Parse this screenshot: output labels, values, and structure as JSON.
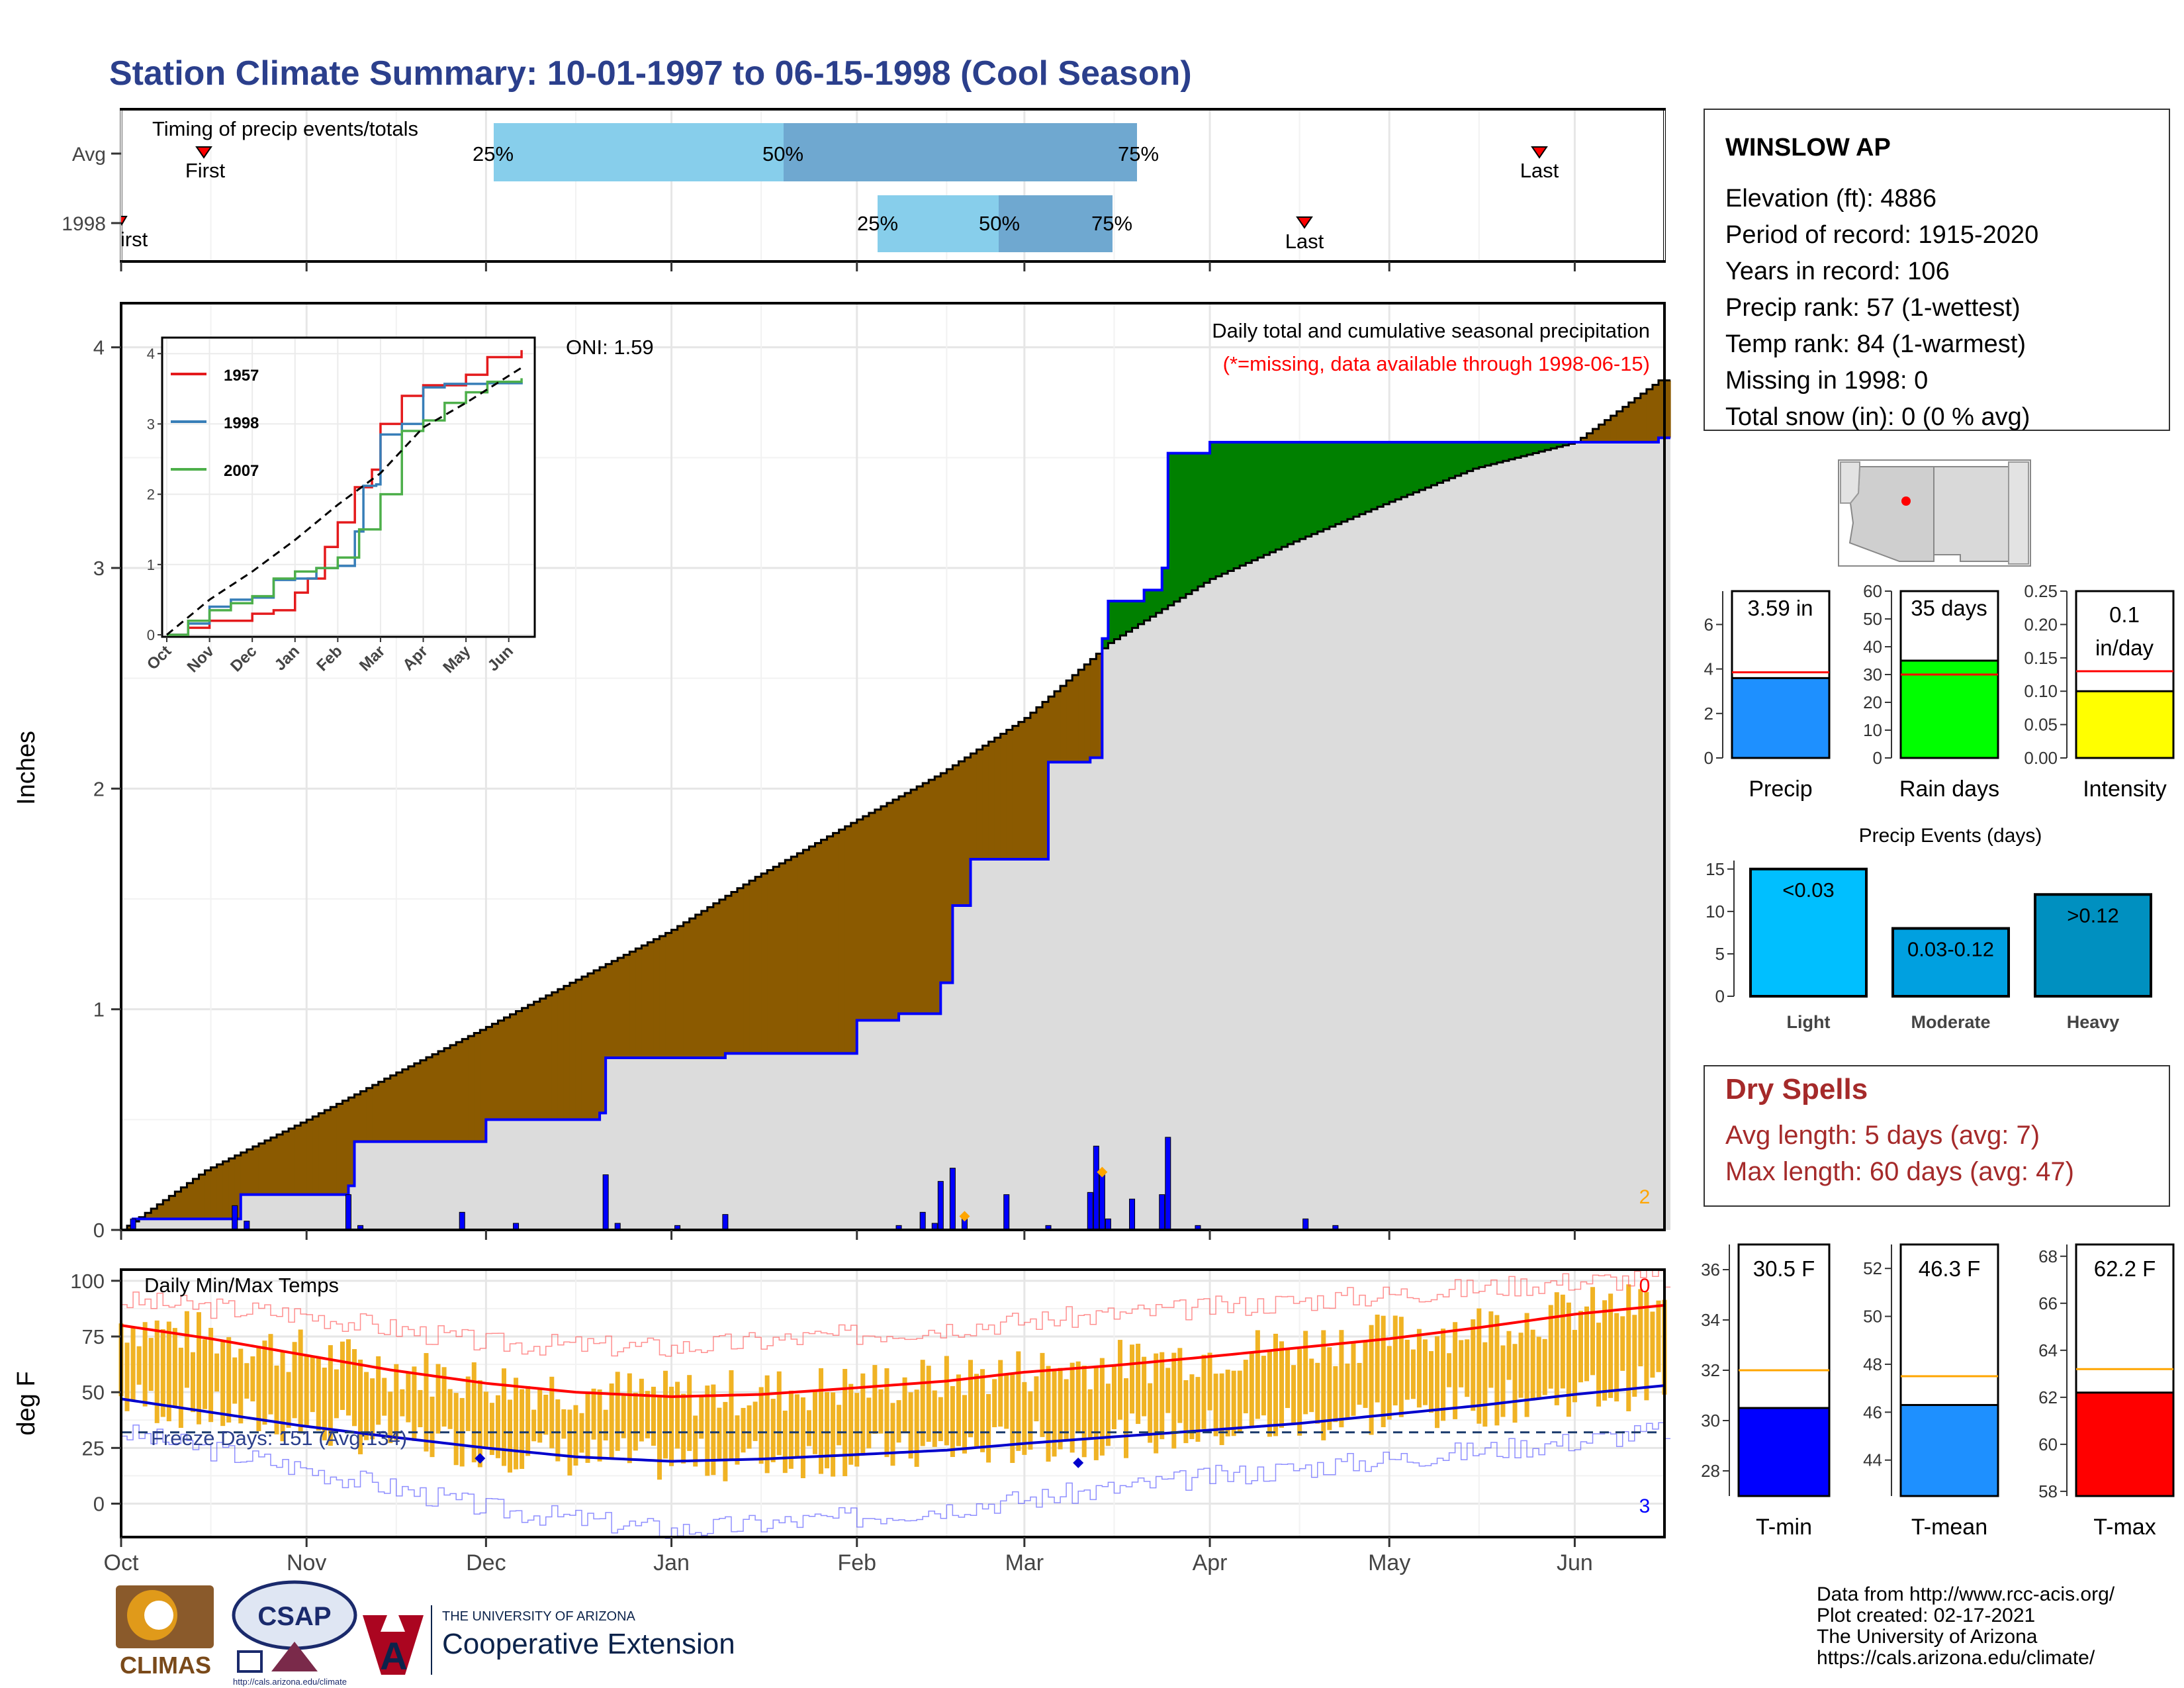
{
  "title": "Station Climate Summary: 10-01-1997 to 06-15-1998 (Cool Season)",
  "timing": {
    "title": "Timing of precip events/totals",
    "rows": [
      {
        "label": "Avg",
        "first_label": "First",
        "last_label": "Last",
        "first": "Oct 29",
        "q25": "Feb 2",
        "q50": "Mar 18",
        "q75": "Apr 22",
        "last": "Jun 6"
      },
      {
        "label": "1998",
        "first_label": "First",
        "last_label": "Last",
        "first": "Oct 1",
        "q25": "Mar 3",
        "q50": "Mar 21",
        "q75": "Apr 8",
        "last": "May 21"
      }
    ],
    "pct_labels": [
      "25%",
      "50%",
      "75%"
    ]
  },
  "precip": {
    "ylabel": "Inches",
    "subtitle": "Daily total and cumulative seasonal precipitation",
    "missing_note": "(*=missing, data available through 1998-06-15)",
    "missing_count": "2",
    "oni": "ONI: 1.59",
    "months": [
      "Oct",
      "Nov",
      "Dec",
      "Jan",
      "Feb",
      "Mar",
      "Apr",
      "May",
      "Jun"
    ],
    "yticks": [
      "0",
      "1",
      "2",
      "3",
      "4"
    ]
  },
  "chart_data": [
    {
      "type": "area",
      "title": "Daily total and cumulative seasonal precipitation",
      "ylabel": "Inches",
      "ylim": [
        0,
        4.2
      ],
      "x_range": [
        "1997-10-01",
        "1998-06-15"
      ],
      "series": [
        {
          "name": "Average cumulative",
          "x": [
            "1997-10-01",
            "1997-10-15",
            "1997-11-01",
            "1997-11-15",
            "1997-12-01",
            "1997-12-15",
            "1998-01-01",
            "1998-01-15",
            "1998-02-01",
            "1998-02-15",
            "1998-03-01",
            "1998-03-15",
            "1998-04-01",
            "1998-04-15",
            "1998-05-01",
            "1998-05-15",
            "1998-06-01",
            "1998-06-15"
          ],
          "values": [
            0.0,
            0.27,
            0.5,
            0.7,
            0.92,
            1.12,
            1.36,
            1.6,
            1.86,
            2.07,
            2.32,
            2.66,
            2.95,
            3.12,
            3.3,
            3.45,
            3.57,
            3.85
          ]
        },
        {
          "name": "1998 cumulative",
          "x": [
            "1997-10-01",
            "1997-10-03",
            "1997-10-20",
            "1997-10-21",
            "1997-11-08",
            "1997-11-09",
            "1997-11-27",
            "1997-12-01",
            "1997-12-20",
            "1997-12-21",
            "1998-01-10",
            "1998-02-01",
            "1998-02-08",
            "1998-02-15",
            "1998-02-17",
            "1998-02-20",
            "1998-03-05",
            "1998-03-12",
            "1998-03-14",
            "1998-03-15",
            "1998-03-21",
            "1998-03-24",
            "1998-03-25",
            "1998-04-01",
            "1998-05-01",
            "1998-06-15"
          ],
          "values": [
            0.0,
            0.05,
            0.05,
            0.16,
            0.2,
            0.4,
            0.4,
            0.5,
            0.53,
            0.78,
            0.8,
            0.95,
            0.98,
            1.12,
            1.47,
            1.68,
            2.12,
            2.14,
            2.68,
            2.85,
            2.9,
            3.0,
            3.52,
            3.57,
            3.57,
            3.59
          ]
        },
        {
          "name": "Daily total",
          "x": [
            "1997-10-03",
            "1997-10-20",
            "1997-10-22",
            "1997-11-08",
            "1997-11-10",
            "1997-11-27",
            "1997-12-06",
            "1997-12-21",
            "1997-12-23",
            "1998-01-02",
            "1998-01-10",
            "1998-02-08",
            "1998-02-12",
            "1998-02-14",
            "1998-02-15",
            "1998-02-17",
            "1998-02-19",
            "1998-02-26",
            "1998-03-05",
            "1998-03-12",
            "1998-03-13",
            "1998-03-14",
            "1998-03-15",
            "1998-03-19",
            "1998-03-24",
            "1998-03-25",
            "1998-03-30",
            "1998-04-17",
            "1998-04-22"
          ],
          "values": [
            0.05,
            0.11,
            0.04,
            0.16,
            0.02,
            0.08,
            0.03,
            0.25,
            0.03,
            0.02,
            0.07,
            0.02,
            0.08,
            0.03,
            0.22,
            0.28,
            0.05,
            0.16,
            0.02,
            0.17,
            0.38,
            0.25,
            0.05,
            0.14,
            0.16,
            0.42,
            0.02,
            0.05,
            0.02
          ]
        }
      ],
      "highlight_markers": [
        "1998-02-19",
        "1998-03-14"
      ]
    },
    {
      "type": "line",
      "title": "",
      "ylim": [
        0,
        4
      ],
      "x_range": [
        "Oct",
        "Jun"
      ],
      "series": [
        {
          "name": "1957",
          "x": [
            0,
            0.5,
            1,
            1.5,
            2,
            2.5,
            3,
            3.3,
            3.7,
            4,
            4.4,
            4.8,
            5,
            5.5,
            6,
            6.5,
            7,
            7.5,
            8.3
          ],
          "values": [
            0,
            0.1,
            0.2,
            0.2,
            0.3,
            0.35,
            0.6,
            0.8,
            1.25,
            1.6,
            2.1,
            2.35,
            3.0,
            3.4,
            3.55,
            3.55,
            3.7,
            3.95,
            4.05
          ]
        },
        {
          "name": "1998",
          "x": [
            0,
            0.5,
            1,
            1.5,
            2,
            2.5,
            3,
            3.5,
            4,
            4.4,
            4.6,
            4.9,
            5,
            5.5,
            6,
            6.5,
            7,
            7.5,
            8.3
          ],
          "values": [
            0,
            0.16,
            0.4,
            0.5,
            0.53,
            0.78,
            0.8,
            0.95,
            0.98,
            1.47,
            2.12,
            2.14,
            2.85,
            3.0,
            3.52,
            3.57,
            3.57,
            3.58,
            3.59
          ]
        },
        {
          "name": "2007",
          "x": [
            0,
            0.5,
            1,
            1.5,
            2,
            2.5,
            3,
            3.5,
            4,
            4.5,
            5,
            5.5,
            6,
            6.5,
            7,
            7.5,
            8.3
          ],
          "values": [
            0,
            0.2,
            0.35,
            0.45,
            0.55,
            0.8,
            0.9,
            0.95,
            1.1,
            1.5,
            2.0,
            2.9,
            3.05,
            3.3,
            3.45,
            3.6,
            3.65
          ]
        },
        {
          "name": "Average",
          "x": [
            0,
            1,
            2,
            3,
            4,
            5,
            6,
            7,
            8.3
          ],
          "values": [
            0,
            0.5,
            0.9,
            1.35,
            1.85,
            2.3,
            2.95,
            3.3,
            3.8
          ]
        }
      ],
      "xticks": [
        "Oct",
        "Nov",
        "Dec",
        "Jan",
        "Feb",
        "Mar",
        "Apr",
        "May",
        "Jun"
      ],
      "yticks": [
        "0",
        "1",
        "2",
        "3",
        "4"
      ]
    },
    {
      "type": "bar",
      "title": "Daily Min/Max Temps",
      "ylabel": "deg F",
      "ylim": [
        -15,
        105
      ],
      "freeze_note": "Freeze Days: 151 (Avg:134)",
      "freeze_line": 32,
      "missing_max": "0",
      "missing_min": "3",
      "series": [
        {
          "name": "Avg max",
          "x": [
            0,
            15,
            30,
            45,
            61,
            76,
            92,
            107,
            123,
            138,
            151,
            166,
            182,
            197,
            212,
            227,
            243,
            258
          ],
          "values": [
            80,
            74,
            67,
            60,
            54,
            50,
            48,
            49,
            52,
            55,
            59,
            62,
            66,
            70,
            74,
            79,
            85,
            89
          ]
        },
        {
          "name": "Avg min",
          "x": [
            0,
            15,
            30,
            45,
            61,
            76,
            92,
            107,
            123,
            138,
            151,
            166,
            182,
            197,
            212,
            227,
            243,
            258
          ],
          "values": [
            47,
            41,
            35,
            30,
            25,
            21,
            19,
            20,
            22,
            24,
            27,
            30,
            33,
            36,
            40,
            44,
            49,
            53
          ]
        },
        {
          "name": "Record max",
          "x": [
            0,
            30,
            61,
            92,
            123,
            151,
            182,
            212,
            243,
            258
          ],
          "values": [
            91,
            85,
            72,
            70,
            76,
            82,
            88,
            94,
            100,
            101
          ]
        },
        {
          "name": "Record min",
          "x": [
            0,
            30,
            61,
            92,
            123,
            151,
            182,
            212,
            243,
            258
          ],
          "values": [
            32,
            16,
            -2,
            -12,
            -6,
            2,
            12,
            20,
            28,
            33
          ]
        }
      ],
      "xticks": [
        "Oct",
        "Nov",
        "Dec",
        "Jan",
        "Feb",
        "Mar",
        "Apr",
        "May",
        "Jun"
      ],
      "yticks": [
        "0",
        "25",
        "50",
        "75",
        "100"
      ]
    },
    {
      "type": "bar",
      "title": "Precip",
      "categories": [
        "Precip",
        "Rain days",
        "Intensity"
      ],
      "values": [
        3.59,
        35,
        0.1
      ],
      "averages": [
        3.85,
        30,
        0.13
      ],
      "labels": [
        "3.59 in",
        "35 days",
        "0.1 in/day"
      ],
      "ylims": [
        [
          0,
          7.5
        ],
        [
          0,
          60
        ],
        [
          0,
          0.25
        ]
      ],
      "yticks": [
        [
          "0",
          "2",
          "4",
          "6"
        ],
        [
          "0",
          "10",
          "20",
          "30",
          "40",
          "50",
          "60"
        ],
        [
          "0.00",
          "0.05",
          "0.10",
          "0.15",
          "0.20",
          "0.25"
        ]
      ]
    },
    {
      "type": "bar",
      "title": "Precip Events (days)",
      "categories": [
        "Light",
        "Moderate",
        "Heavy"
      ],
      "values": [
        15,
        8,
        12
      ],
      "labels": [
        "<0.03",
        "0.03-0.12",
        ">0.12"
      ],
      "ylim": [
        0,
        16
      ],
      "yticks": [
        "0",
        "5",
        "10",
        "15"
      ]
    },
    {
      "type": "bar",
      "title": "Temperature",
      "categories": [
        "T-min",
        "T-mean",
        "T-max"
      ],
      "values": [
        30.5,
        46.3,
        62.2
      ],
      "averages": [
        32.0,
        47.5,
        63.2
      ],
      "labels": [
        "30.5 F",
        "46.3 F",
        "62.2 F"
      ],
      "ylims": [
        [
          27,
          37
        ],
        [
          42.5,
          53
        ],
        [
          57.8,
          68.5
        ]
      ],
      "yticks": [
        [
          "28",
          "30",
          "32",
          "34",
          "36"
        ],
        [
          "44",
          "46",
          "48",
          "50",
          "52"
        ],
        [
          "58",
          "60",
          "62",
          "64",
          "66",
          "68"
        ]
      ]
    }
  ],
  "station": {
    "name": "WINSLOW AP",
    "lines": [
      "Elevation (ft): 4886",
      "Period of record: 1915-2020",
      "Years in record: 106",
      "Precip rank: 57 (1-wettest)",
      "Temp rank: 84 (1-warmest)",
      "Missing in 1998: 0",
      "Total snow (in): 0 (0 % avg)"
    ]
  },
  "dry_spells": {
    "title": "Dry Spells",
    "avg": "Avg length: 5 days (avg: 7)",
    "max": "Max length: 60 days (avg: 47)"
  },
  "footer": {
    "lines": [
      "Data from http://www.rcc-acis.org/",
      "Plot created: 02-17-2021",
      "The University of Arizona",
      "https://cals.arizona.edu/climate/"
    ],
    "logos": [
      "CLIMAS",
      "CSAP",
      "THE UNIVERSITY OF ARIZONA",
      "Cooperative Extension",
      "http://cals.arizona.edu/climate"
    ]
  },
  "colors": {
    "title": "#2b3f8c",
    "brown": "#8b5a00",
    "green": "#008000",
    "gray_fill": "#dcdcdc",
    "blue_line": "#0000ff",
    "temp_bar": "#f0b324",
    "red": "#ff0000",
    "dry_spell": "#a52a2a",
    "precip_bar": "#1e90ff",
    "raindays_bar": "#00ff00",
    "intensity_bar": "#ffff00",
    "light": "#00bfff",
    "moderate": "#00a0e0",
    "heavy": "#0090c0",
    "tmin": "#0000ff",
    "tmean": "#1e90ff",
    "tmax": "#ff0000"
  }
}
